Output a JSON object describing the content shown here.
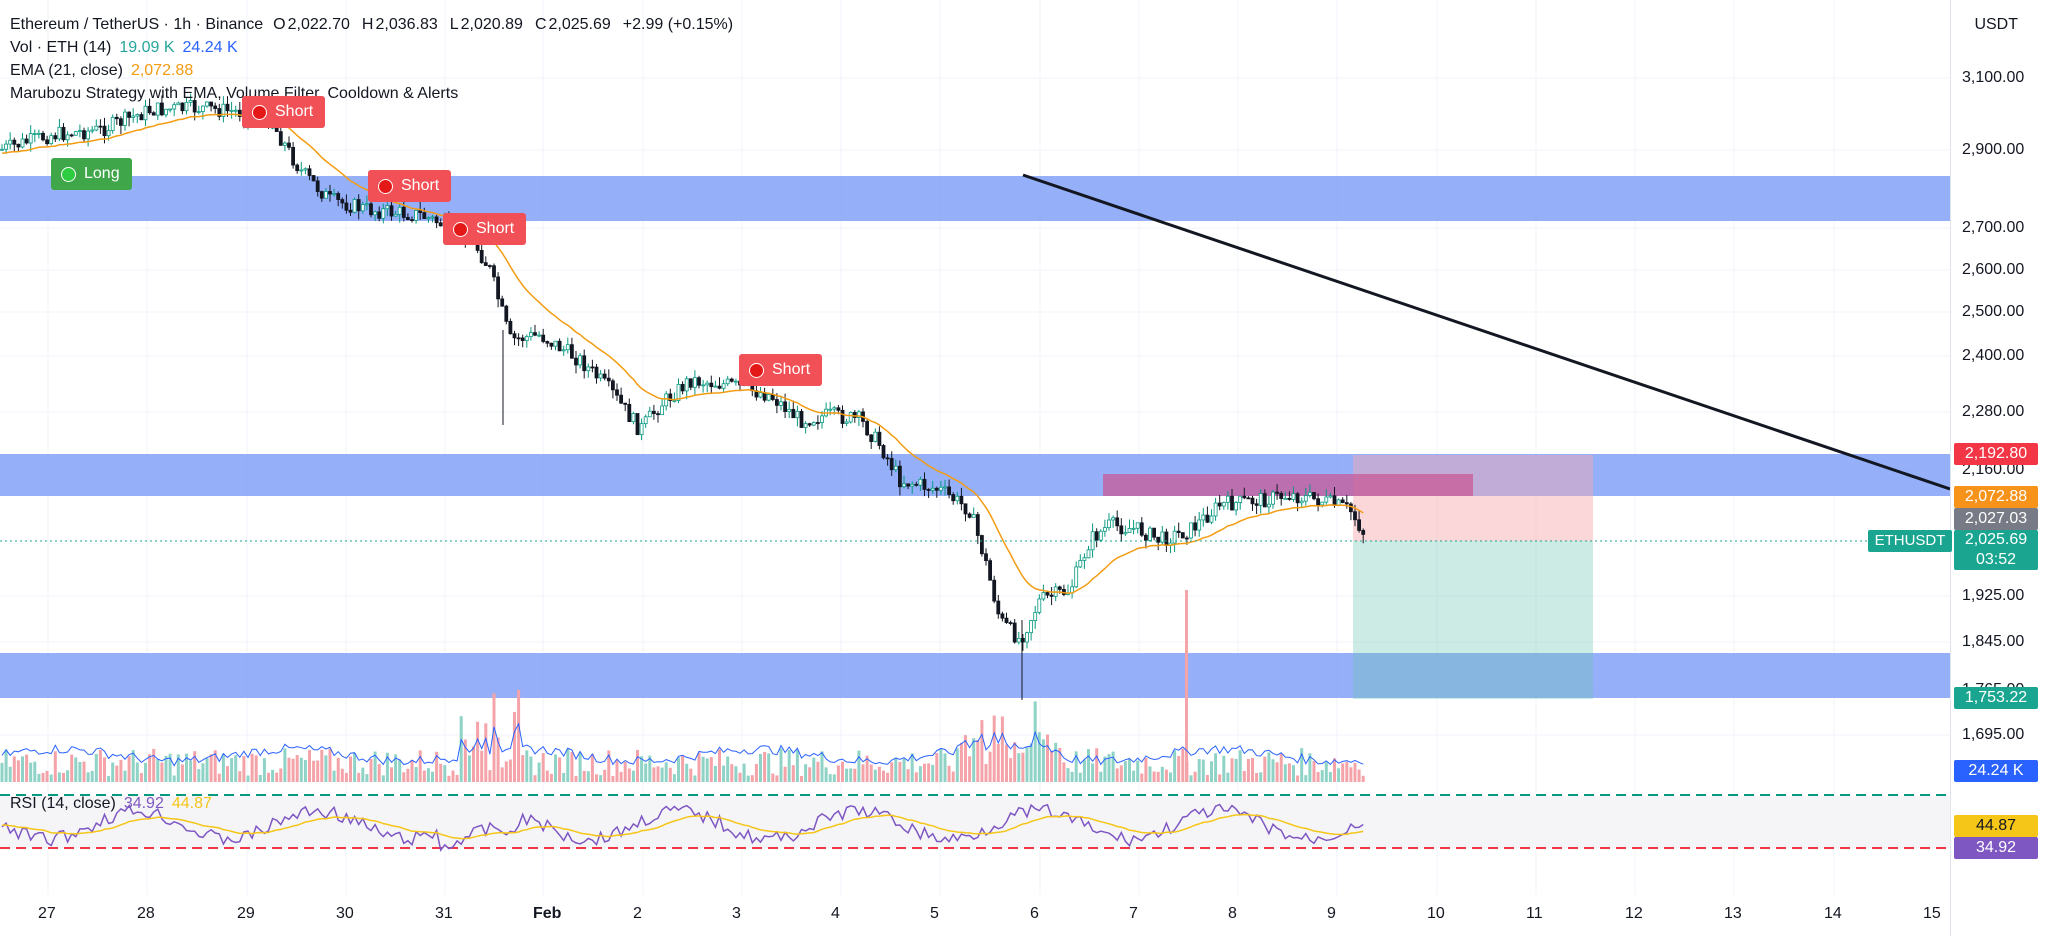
{
  "header": {
    "symbol": "Ethereum / TetherUS · 1h · Binance",
    "open_label": "O",
    "open": "2,022.70",
    "high_label": "H",
    "high": "2,036.83",
    "low_label": "L",
    "low": "2,020.89",
    "close_label": "C",
    "close": "2,025.69",
    "change": "+2.99 (+0.15%)"
  },
  "indicators": {
    "volume_name": "Vol · ETH (14)",
    "volume_value": "19.09 K",
    "volume_ma": "24.24 K",
    "ema_name": "EMA (21, close)",
    "ema_value": "2,072.88",
    "strategy_name": "Marubozu Strategy with EMA, Volume Filter, Cooldown & Alerts",
    "rsi_name": "RSI (14, close)",
    "rsi_value": "34.92",
    "rsi_ma": "44.87"
  },
  "signals": [
    {
      "type": "short",
      "label": "Short"
    },
    {
      "type": "long",
      "label": "Long"
    },
    {
      "type": "short",
      "label": "Short"
    },
    {
      "type": "short",
      "label": "Short"
    },
    {
      "type": "short",
      "label": "Short"
    }
  ],
  "price_axis": {
    "currency": "USDT",
    "ticks": [
      "3,100.00",
      "2,900.00",
      "2,700.00",
      "2,600.00",
      "2,500.00",
      "2,400.00",
      "2,280.00",
      "2,160.00",
      "1,925.00",
      "1,845.00",
      "1,765.00",
      "1,695.00"
    ]
  },
  "price_tags": {
    "stop": "2,192.80",
    "ema": "2,072.88",
    "entry": "2,027.03",
    "last": "2,025.69",
    "countdown": "03:52",
    "target": "1,753.22",
    "volume": "24.24 K",
    "rsi_ma": "44.87",
    "rsi": "34.92",
    "symbol_tag": "ETHUSDT"
  },
  "time_axis": [
    "27",
    "28",
    "29",
    "30",
    "31",
    "Feb",
    "2",
    "3",
    "4",
    "5",
    "6",
    "7",
    "8",
    "9",
    "10",
    "11",
    "12",
    "13",
    "14",
    "15"
  ],
  "colors": {
    "bull": "#089981",
    "bear": "#131722",
    "zone": "#7b9cf7",
    "ema": "#f39c12",
    "rsi": "#7e57c2",
    "rsi_ma": "#f5c518",
    "vol_up": "#8fd3c7",
    "vol_down": "#f4a3a8"
  }
}
